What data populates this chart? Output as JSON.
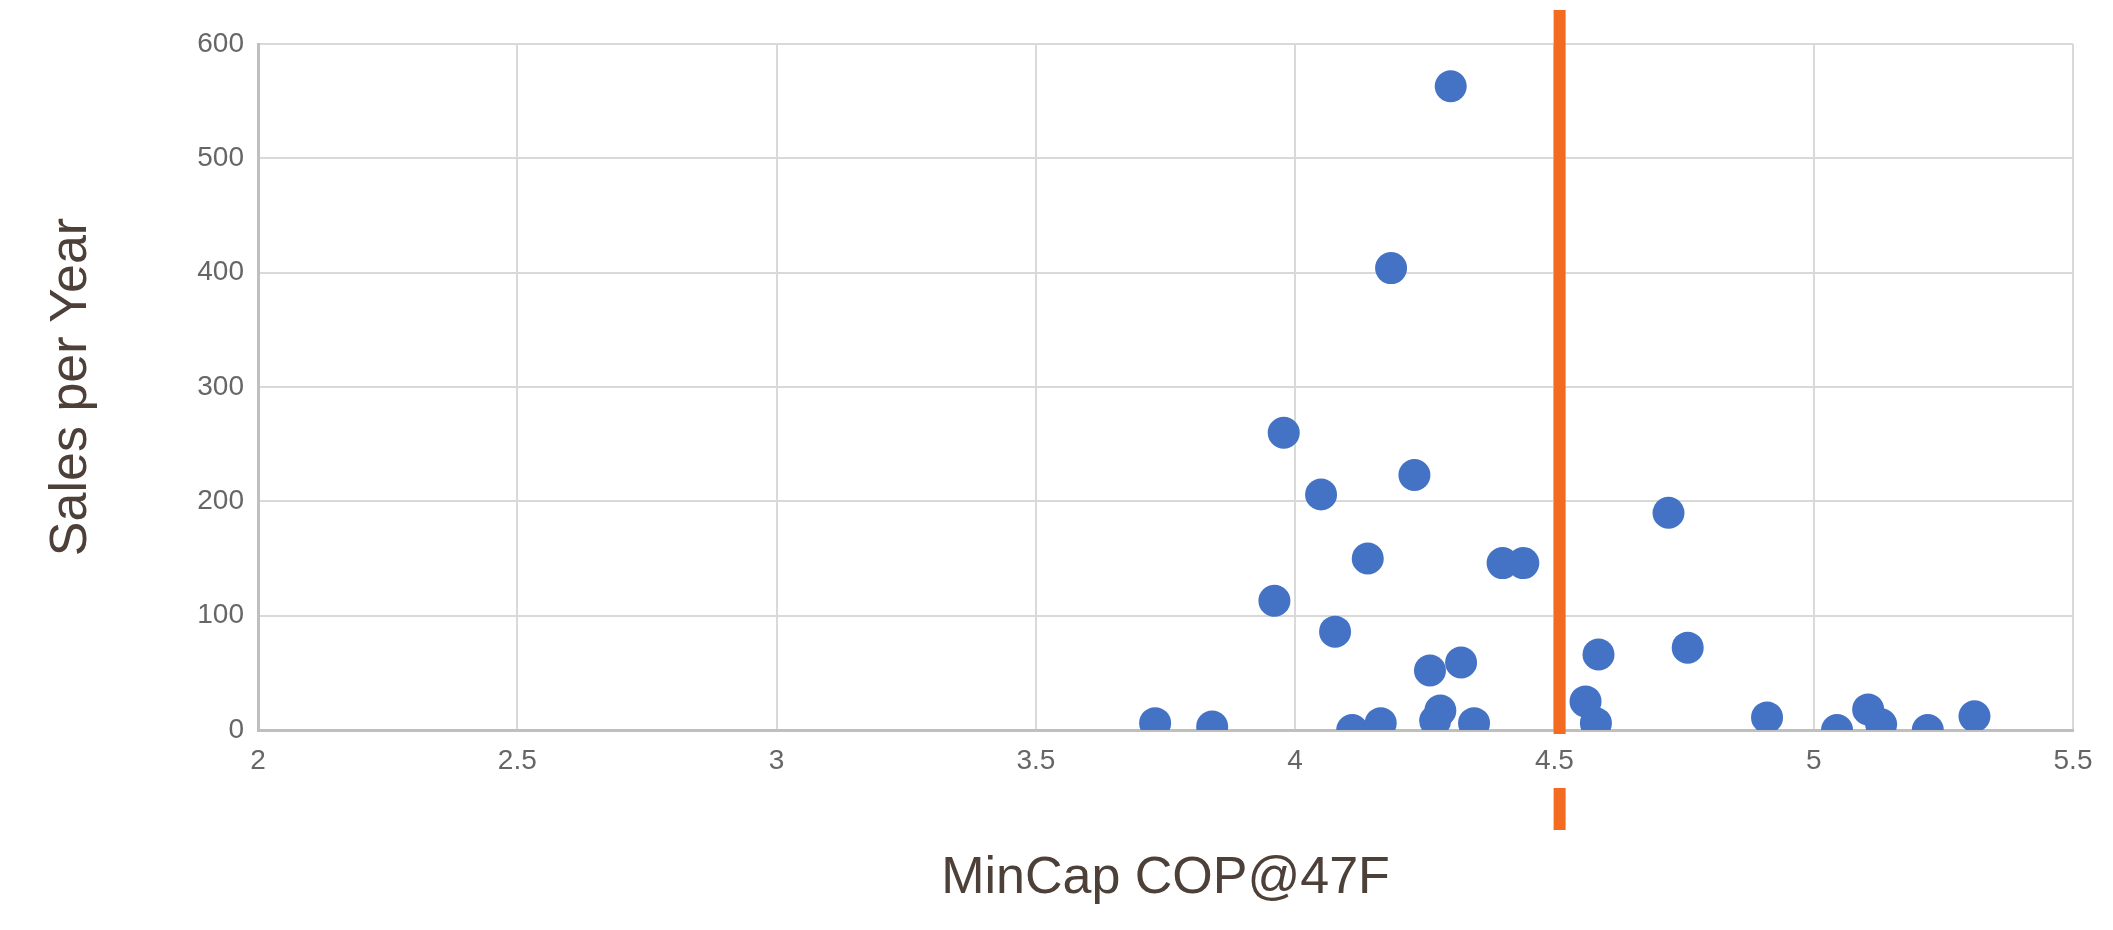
{
  "chart_data": {
    "type": "scatter",
    "xlabel": "MinCap COP@47F",
    "ylabel": "Sales per Year",
    "series": [
      {
        "color": "#4472c4",
        "x": [
          4.3,
          4.185,
          3.978,
          4.05,
          4.23,
          4.14,
          4.4,
          4.44,
          3.96,
          4.077,
          4.26,
          4.32,
          4.585,
          4.72,
          4.757,
          4.56,
          4.58,
          4.91,
          3.73,
          3.84,
          4.11,
          4.165,
          4.28,
          4.27,
          4.345,
          5.045,
          5.105,
          5.13,
          5.22,
          5.31
        ],
        "values": [
          563,
          404,
          260,
          206,
          223,
          150,
          146,
          146,
          113,
          86,
          52,
          59,
          66,
          190,
          72,
          25,
          6,
          11,
          6,
          3,
          0,
          6,
          17,
          8,
          6,
          0,
          18,
          5,
          0,
          12
        ]
      }
    ],
    "xlim": [
      2,
      5.5
    ],
    "xticks": [
      2,
      2.5,
      3,
      3.5,
      4,
      4.5,
      5,
      5.5
    ],
    "ylim": [
      0,
      600
    ],
    "yticks": [
      0,
      100,
      200,
      300,
      400,
      500,
      600
    ],
    "ref_lines": [
      {
        "axis": "x",
        "value": 4.51,
        "color": "#f26b21"
      }
    ],
    "grid": true,
    "legend": false,
    "marker": "circle"
  }
}
